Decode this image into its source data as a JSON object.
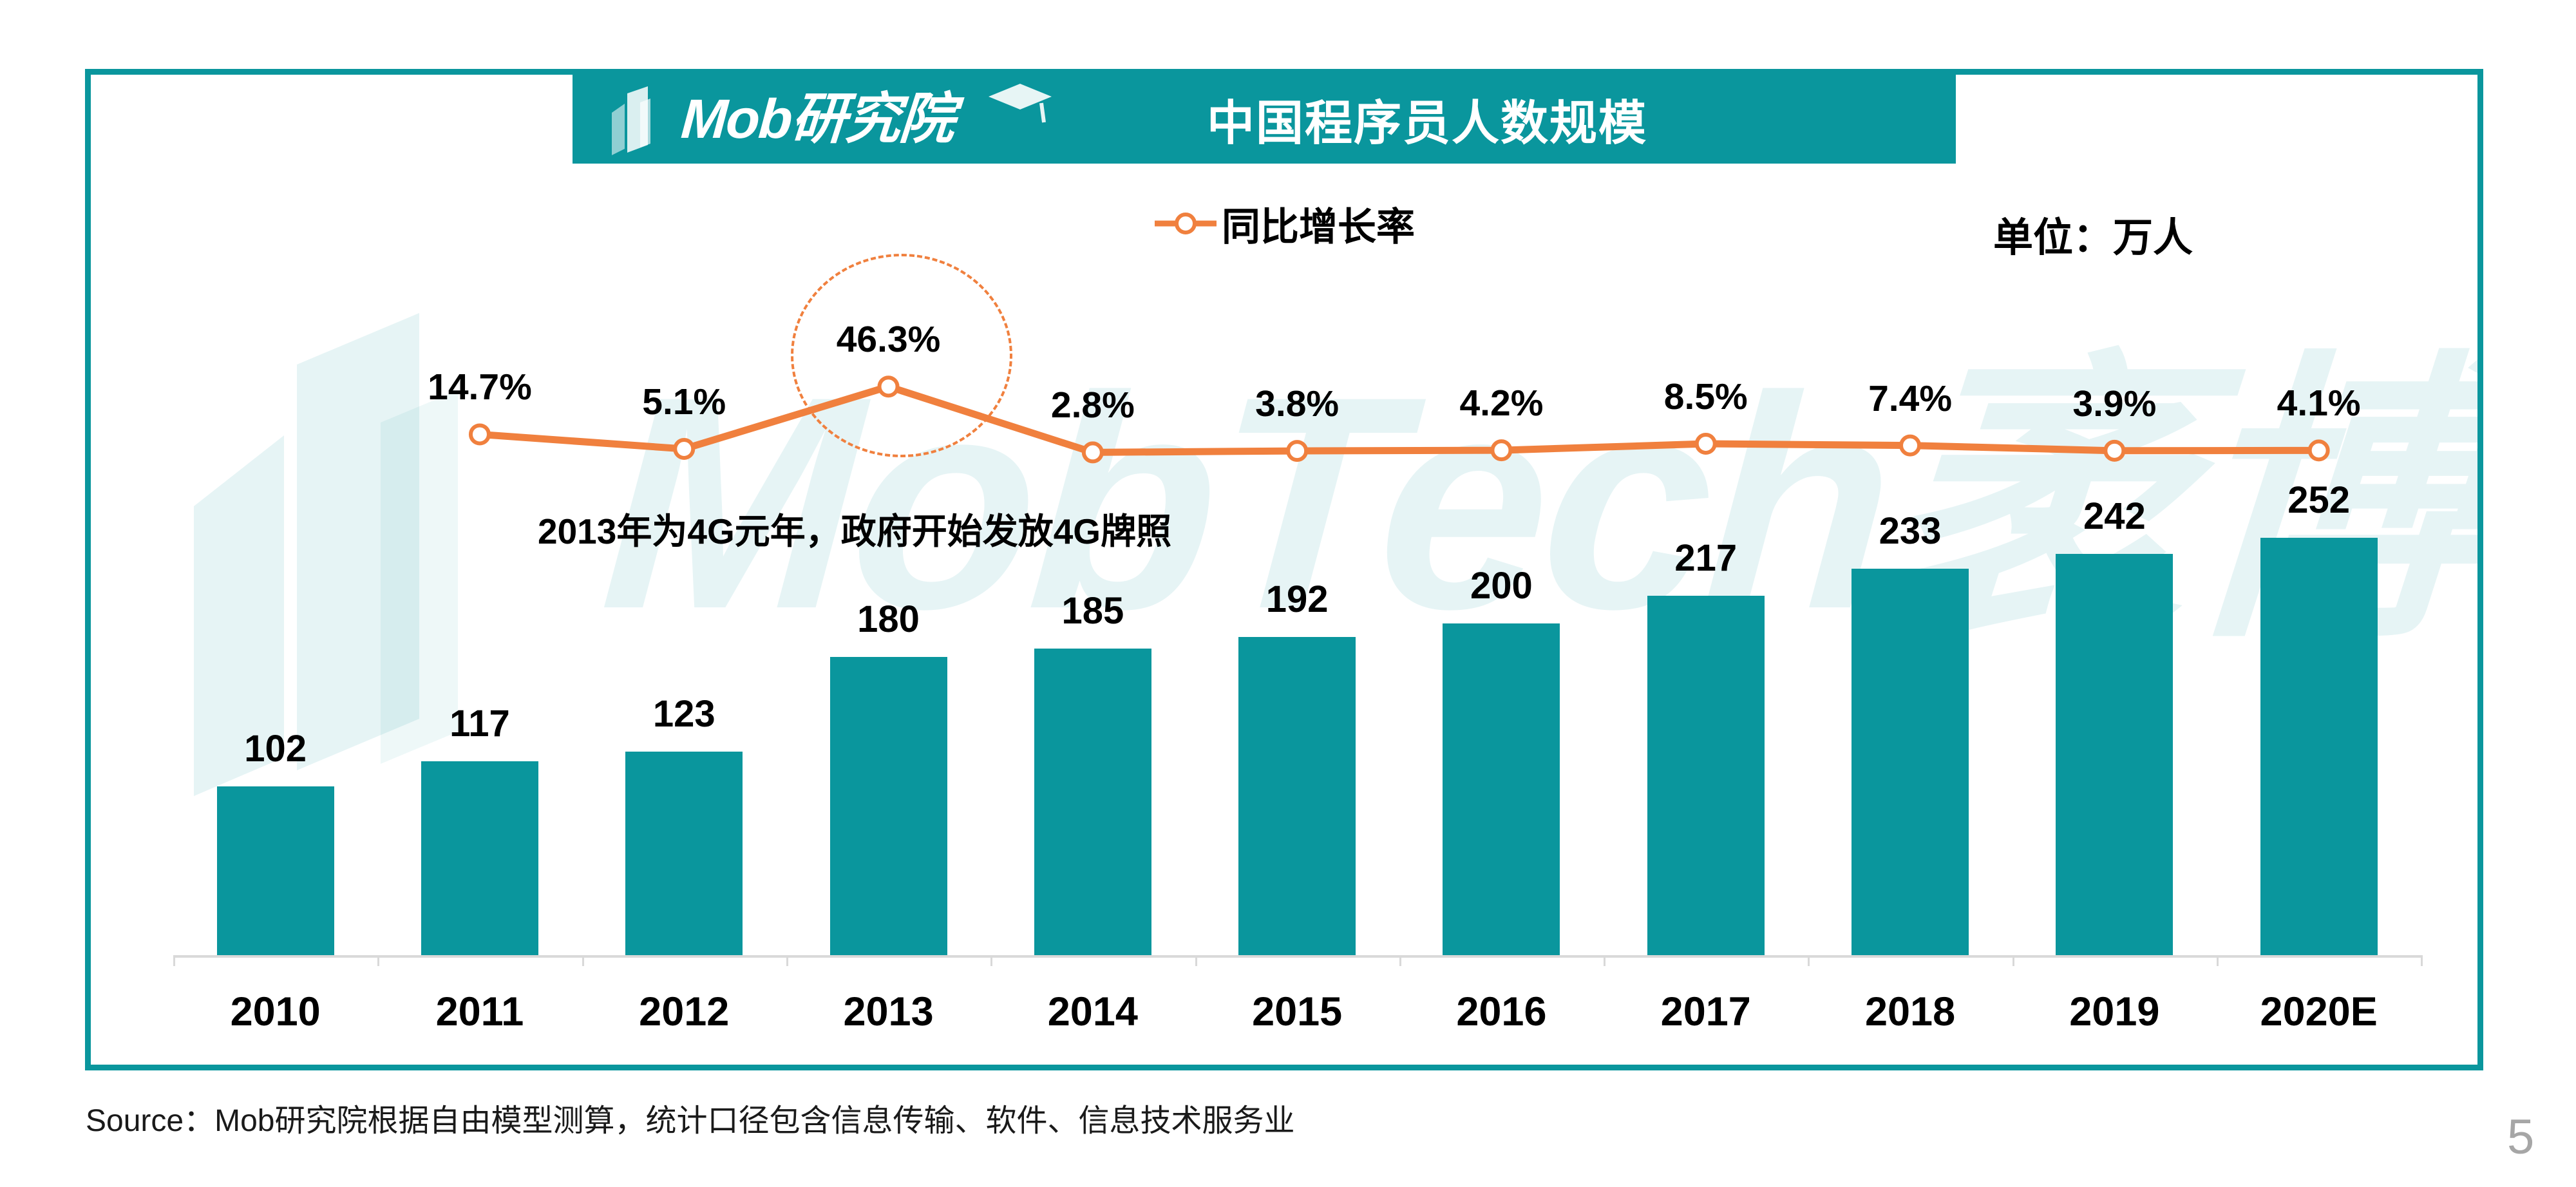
{
  "header": {
    "logo_text": "Mob研究院",
    "title": "中国程序员人数规模"
  },
  "legend": {
    "series_label": "同比增长率",
    "unit_label": "单位：万人"
  },
  "annotation": "2013年为4G元年，政府开始发放4G牌照",
  "watermark_text": "MobTech袤博",
  "footer": {
    "source": "Source：Mob研究院根据自由模型测算，统计口径包含信息传输、软件、信息技术服务业",
    "page_number": "5"
  },
  "colors": {
    "teal": "#0A969D",
    "orange": "#F0803E",
    "axis_gray": "#D9D9D9",
    "label_black": "#000000",
    "page_number_gray": "#A6A6A6",
    "watermark": "rgba(10,150,157,0.10)"
  },
  "chart_data": {
    "type": "bar",
    "title": "中国程序员人数规模",
    "unit": "万人",
    "categories": [
      "2010",
      "2011",
      "2012",
      "2013",
      "2014",
      "2015",
      "2016",
      "2017",
      "2018",
      "2019",
      "2020E"
    ],
    "series": [
      {
        "name": "中国程序员人数（万人）",
        "type": "bar",
        "values": [
          102,
          117,
          123,
          180,
          185,
          192,
          200,
          217,
          233,
          242,
          252
        ]
      },
      {
        "name": "同比增长率",
        "type": "line",
        "values": [
          null,
          14.7,
          5.1,
          46.3,
          2.8,
          3.8,
          4.2,
          8.5,
          7.4,
          3.9,
          4.1
        ],
        "labels": [
          "",
          "14.7%",
          "5.1%",
          "46.3%",
          "2.8%",
          "3.8%",
          "4.2%",
          "8.5%",
          "7.4%",
          "3.9%",
          "4.1%"
        ]
      }
    ],
    "highlight": {
      "category": "2013",
      "label": "46.3%",
      "note": "2013年为4G元年，政府开始发放4G牌照"
    },
    "legend_position": "top",
    "value_axis": "hidden",
    "grid": false,
    "ylim_bar": [
      0,
      280
    ]
  }
}
